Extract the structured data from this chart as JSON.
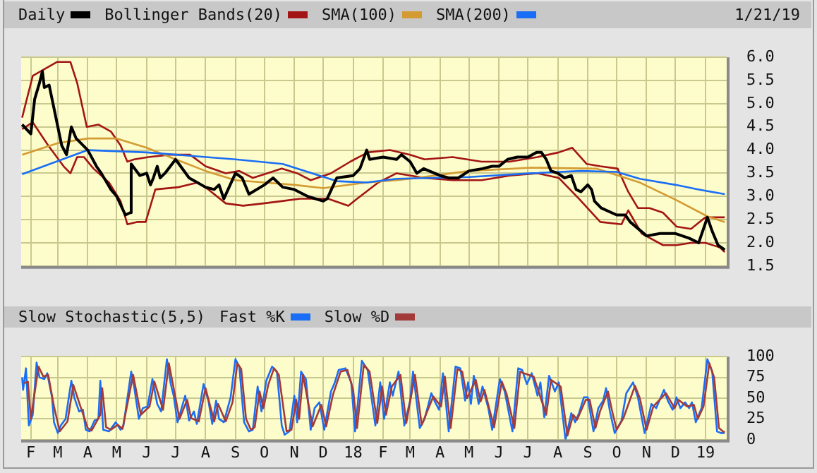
{
  "chart_data": [
    {
      "type": "line",
      "legend": "top",
      "tick_labels": "y",
      "grid": true,
      "annotations": [
        "1/21/19"
      ],
      "xlim": [
        "2017-01-22",
        "2019-01-23"
      ],
      "xticks": [
        {
          "value": "2017-02-01",
          "label": null
        },
        {
          "value": "2017-03-01",
          "label": null
        },
        {
          "value": "2017-04-01",
          "label": null
        },
        {
          "value": "2017-05-01",
          "label": null
        },
        {
          "value": "2017-06-01",
          "label": null
        },
        {
          "value": "2017-07-01",
          "label": null
        },
        {
          "value": "2017-08-01",
          "label": null
        },
        {
          "value": "2017-09-01",
          "label": null
        },
        {
          "value": "2017-10-01",
          "label": null
        },
        {
          "value": "2017-11-01",
          "label": null
        },
        {
          "value": "2017-12-01",
          "label": null
        },
        {
          "value": "2018-01-01",
          "label": null
        },
        {
          "value": "2018-02-01",
          "label": null
        },
        {
          "value": "2018-03-01",
          "label": null
        },
        {
          "value": "2018-04-01",
          "label": null
        },
        {
          "value": "2018-05-01",
          "label": null
        },
        {
          "value": "2018-06-01",
          "label": null
        },
        {
          "value": "2018-07-01",
          "label": null
        },
        {
          "value": "2018-08-01",
          "label": null
        },
        {
          "value": "2018-09-01",
          "label": null
        },
        {
          "value": "2018-10-01",
          "label": null
        },
        {
          "value": "2018-11-01",
          "label": null
        },
        {
          "value": "2018-12-01",
          "label": null
        },
        {
          "value": "2019-01-01",
          "label": null
        }
      ],
      "ylim": [
        1.5,
        6.0
      ],
      "yticks": [
        {
          "value": 1.5,
          "label": "1.5"
        },
        {
          "value": 2,
          "label": "2.0"
        },
        {
          "value": 2.5,
          "label": "2.5"
        },
        {
          "value": 3,
          "label": "3.0"
        },
        {
          "value": 3.5,
          "label": "3.5"
        },
        {
          "value": 4,
          "label": "4.0"
        },
        {
          "value": 4.5,
          "label": "4.5"
        },
        {
          "value": 5,
          "label": "5.0"
        },
        {
          "value": 5.5,
          "label": "5.5"
        },
        {
          "value": 6,
          "label": "6.0"
        }
      ],
      "series": [
        {
          "name": "Bollinger Bands(20)",
          "color": "#a31515",
          "x": [
            "2017-01-23",
            "2017-02-03",
            "2017-02-28",
            "2017-03-14",
            "2017-03-21",
            "2017-03-31",
            "2017-04-12",
            "2017-04-25",
            "2017-05-05",
            "2017-05-12",
            "2017-05-19",
            "2017-06-03",
            "2017-06-25",
            "2017-07-16",
            "2017-08-01",
            "2017-08-22",
            "2017-09-05",
            "2017-09-19",
            "2017-10-04",
            "2017-10-19",
            "2017-11-04",
            "2017-11-18",
            "2017-12-09",
            "2017-12-29",
            "2018-01-16",
            "2018-02-08",
            "2018-03-01",
            "2018-03-16",
            "2018-04-14",
            "2018-05-14",
            "2018-06-12",
            "2018-07-11",
            "2018-08-02",
            "2018-08-16",
            "2018-08-31",
            "2018-09-14",
            "2018-10-02",
            "2018-10-13",
            "2018-10-23",
            "2018-11-04",
            "2018-11-18",
            "2018-12-02",
            "2018-12-17",
            "2019-01-01",
            "2019-01-16",
            "2019-01-21"
          ],
          "values": [
            4.7,
            5.6,
            5.9,
            5.9,
            5.45,
            4.5,
            4.55,
            4.4,
            4.1,
            3.75,
            3.8,
            3.85,
            3.9,
            3.9,
            3.65,
            3.5,
            3.55,
            3.4,
            3.5,
            3.6,
            3.5,
            3.35,
            3.5,
            3.75,
            3.95,
            4.0,
            3.9,
            3.8,
            3.85,
            3.75,
            3.75,
            3.85,
            3.95,
            4.05,
            3.7,
            3.65,
            3.6,
            3.1,
            2.75,
            2.75,
            2.65,
            2.35,
            2.3,
            2.55,
            2.55,
            2.55
          ]
        },
        {
          "color": "#a31515",
          "x": [
            "2017-01-23",
            "2017-02-03",
            "2017-02-19",
            "2017-03-07",
            "2017-03-14",
            "2017-03-21",
            "2017-03-28",
            "2017-04-07",
            "2017-04-23",
            "2017-05-05",
            "2017-05-12",
            "2017-05-22",
            "2017-05-31",
            "2017-06-10",
            "2017-07-04",
            "2017-07-24",
            "2017-08-04",
            "2017-08-22",
            "2017-09-09",
            "2017-09-30",
            "2017-10-19",
            "2017-11-07",
            "2017-12-06",
            "2017-12-27",
            "2018-01-05",
            "2018-01-27",
            "2018-02-15",
            "2018-03-16",
            "2018-04-14",
            "2018-05-14",
            "2018-06-12",
            "2018-07-11",
            "2018-08-02",
            "2018-08-23",
            "2018-09-14",
            "2018-10-06",
            "2018-10-13",
            "2018-10-27",
            "2018-11-18",
            "2018-12-02",
            "2018-12-17",
            "2019-01-01",
            "2019-01-16",
            "2019-01-21"
          ],
          "values": [
            4.45,
            4.6,
            4.1,
            3.65,
            3.5,
            3.85,
            3.85,
            3.6,
            3.3,
            2.9,
            2.4,
            2.45,
            2.45,
            3.15,
            3.2,
            3.3,
            3.15,
            2.85,
            2.8,
            2.85,
            2.9,
            2.95,
            2.95,
            2.8,
            2.95,
            3.3,
            3.5,
            3.4,
            3.35,
            3.35,
            3.45,
            3.5,
            3.4,
            2.95,
            2.45,
            2.4,
            2.7,
            2.2,
            1.95,
            1.95,
            2.0,
            2.0,
            1.9,
            1.8
          ]
        },
        {
          "name": "SMA(100)",
          "color": "#d39b32",
          "x": [
            "2017-01-23",
            "2017-03-01",
            "2017-04-01",
            "2017-05-01",
            "2017-06-01",
            "2017-07-01",
            "2017-08-01",
            "2017-09-01",
            "2017-10-01",
            "2017-11-01",
            "2017-12-01",
            "2018-01-15",
            "2018-02-15",
            "2018-03-01",
            "2018-05-01",
            "2018-07-05",
            "2018-09-10",
            "2018-10-25",
            "2018-12-01",
            "2019-01-03",
            "2019-01-21"
          ],
          "values": [
            3.9,
            4.15,
            4.25,
            4.25,
            4.05,
            3.8,
            3.55,
            3.35,
            3.3,
            3.25,
            3.18,
            3.3,
            3.35,
            3.38,
            3.55,
            3.62,
            3.6,
            3.3,
            2.93,
            2.57,
            2.45
          ]
        },
        {
          "name": "SMA(200)",
          "color": "#1a6ef5",
          "x": [
            "2017-01-23",
            "2017-04-01",
            "2017-06-01",
            "2017-09-01",
            "2017-10-20",
            "2017-12-15",
            "2018-01-15",
            "2018-02-15",
            "2018-05-01",
            "2018-07-05",
            "2018-08-25",
            "2018-10-01",
            "2018-10-25",
            "2018-12-01",
            "2018-12-25",
            "2019-01-21"
          ],
          "values": [
            3.48,
            4.0,
            3.95,
            3.8,
            3.7,
            3.33,
            3.3,
            3.38,
            3.42,
            3.5,
            3.55,
            3.53,
            3.38,
            3.25,
            3.15,
            3.05
          ]
        },
        {
          "name": "Daily",
          "color": "#000000",
          "x": [
            "2017-01-23",
            "2017-02-01",
            "2017-02-05",
            "2017-02-10",
            "2017-02-13",
            "2017-02-15",
            "2017-02-20",
            "2017-03-01",
            "2017-03-05",
            "2017-03-10",
            "2017-03-15",
            "2017-03-20",
            "2017-04-01",
            "2017-04-10",
            "2017-04-15",
            "2017-04-25",
            "2017-05-01",
            "2017-05-10",
            "2017-05-15",
            "2017-05-16",
            "2017-05-25",
            "2017-06-01",
            "2017-06-05",
            "2017-06-08",
            "2017-06-12",
            "2017-06-15",
            "2017-06-20",
            "2017-07-01",
            "2017-07-15",
            "2017-08-01",
            "2017-08-10",
            "2017-08-15",
            "2017-08-20",
            "2017-09-01",
            "2017-09-08",
            "2017-09-15",
            "2017-10-01",
            "2017-10-10",
            "2017-10-20",
            "2017-11-01",
            "2017-11-15",
            "2017-12-01",
            "2017-12-05",
            "2017-12-15",
            "2018-01-01",
            "2018-01-08",
            "2018-01-15",
            "2018-01-18",
            "2018-02-01",
            "2018-02-15",
            "2018-02-20",
            "2018-03-01",
            "2018-03-08",
            "2018-03-15",
            "2018-04-01",
            "2018-04-10",
            "2018-04-20",
            "2018-05-01",
            "2018-05-15",
            "2018-05-25",
            "2018-06-01",
            "2018-06-10",
            "2018-06-20",
            "2018-07-01",
            "2018-07-10",
            "2018-07-15",
            "2018-07-20",
            "2018-07-25",
            "2018-08-01",
            "2018-08-08",
            "2018-08-15",
            "2018-08-20",
            "2018-08-25",
            "2018-09-01",
            "2018-09-05",
            "2018-09-08",
            "2018-09-15",
            "2018-10-01",
            "2018-10-10",
            "2018-10-15",
            "2018-11-01",
            "2018-11-15",
            "2018-12-01",
            "2018-12-15",
            "2018-12-25",
            "2019-01-03",
            "2019-01-08",
            "2019-01-14",
            "2019-01-21"
          ],
          "values": [
            4.55,
            4.35,
            5.1,
            5.45,
            5.7,
            5.35,
            5.4,
            4.5,
            4.1,
            3.9,
            4.5,
            4.25,
            4.0,
            3.65,
            3.5,
            3.15,
            3.0,
            2.6,
            2.65,
            3.7,
            3.45,
            3.5,
            3.25,
            3.4,
            3.65,
            3.4,
            3.5,
            3.8,
            3.4,
            3.2,
            3.15,
            3.25,
            2.95,
            3.5,
            3.4,
            3.05,
            3.25,
            3.4,
            3.2,
            3.15,
            3.0,
            2.9,
            2.95,
            3.4,
            3.45,
            3.6,
            4.0,
            3.8,
            3.85,
            3.8,
            3.9,
            3.75,
            3.5,
            3.6,
            3.45,
            3.4,
            3.4,
            3.55,
            3.6,
            3.65,
            3.65,
            3.8,
            3.85,
            3.85,
            3.95,
            3.95,
            3.8,
            3.55,
            3.5,
            3.4,
            3.45,
            3.15,
            3.1,
            3.25,
            3.15,
            2.9,
            2.75,
            2.6,
            2.6,
            2.45,
            2.15,
            2.2,
            2.2,
            2.1,
            2.0,
            2.55,
            2.25,
            1.95,
            1.85
          ]
        }
      ]
    },
    {
      "type": "line",
      "legend": "top",
      "legend_title": "Slow Stochastic(5,5)",
      "grid": true,
      "xlim": [
        "2017-01-22",
        "2019-01-23"
      ],
      "xticks": [
        {
          "value": "2017-02-01",
          "label": "F"
        },
        {
          "value": "2017-03-01",
          "label": "M"
        },
        {
          "value": "2017-04-01",
          "label": "A"
        },
        {
          "value": "2017-05-01",
          "label": "M"
        },
        {
          "value": "2017-06-01",
          "label": "J"
        },
        {
          "value": "2017-07-01",
          "label": "J"
        },
        {
          "value": "2017-08-01",
          "label": "A"
        },
        {
          "value": "2017-09-01",
          "label": "S"
        },
        {
          "value": "2017-10-01",
          "label": "O"
        },
        {
          "value": "2017-11-01",
          "label": "N"
        },
        {
          "value": "2017-12-01",
          "label": "D"
        },
        {
          "value": "2018-01-01",
          "label": "18"
        },
        {
          "value": "2018-02-01",
          "label": "F"
        },
        {
          "value": "2018-03-01",
          "label": "M"
        },
        {
          "value": "2018-04-01",
          "label": "A"
        },
        {
          "value": "2018-05-01",
          "label": "M"
        },
        {
          "value": "2018-06-01",
          "label": "J"
        },
        {
          "value": "2018-07-01",
          "label": "J"
        },
        {
          "value": "2018-08-01",
          "label": "A"
        },
        {
          "value": "2018-09-01",
          "label": "S"
        },
        {
          "value": "2018-10-01",
          "label": "O"
        },
        {
          "value": "2018-11-01",
          "label": "N"
        },
        {
          "value": "2018-12-01",
          "label": "D"
        },
        {
          "value": "2019-01-01",
          "label": "19"
        }
      ],
      "ylim": [
        0,
        100
      ],
      "yticks": [
        0,
        25,
        50,
        75,
        100
      ],
      "series": [
        {
          "name": "Fast %K",
          "color": "#1a6ef5",
          "x": [
            "2017-01-23",
            "2017-01-24",
            "2017-01-27",
            "2017-01-30",
            "2017-02-03",
            "2017-02-07",
            "2017-02-10",
            "2017-02-15",
            "2017-02-18",
            "2017-02-23",
            "2017-02-25",
            "2017-03-01",
            "2017-03-04",
            "2017-03-09",
            "2017-03-15",
            "2017-03-18",
            "2017-03-23",
            "2017-03-27",
            "2017-03-30",
            "2017-04-03",
            "2017-04-08",
            "2017-04-12",
            "2017-04-14",
            "2017-04-17",
            "2017-04-23",
            "2017-04-30",
            "2017-05-05",
            "2017-05-08",
            "2017-05-16",
            "2017-05-19",
            "2017-05-24",
            "2017-05-28",
            "2017-06-02",
            "2017-06-07",
            "2017-06-12",
            "2017-06-16",
            "2017-06-22",
            "2017-06-26",
            "2017-06-29",
            "2017-07-03",
            "2017-07-11",
            "2017-07-15",
            "2017-07-20",
            "2017-07-23",
            "2017-07-30",
            "2017-08-04",
            "2017-08-08",
            "2017-08-12",
            "2017-08-15",
            "2017-08-20",
            "2017-08-27",
            "2017-09-01",
            "2017-09-05",
            "2017-09-10",
            "2017-09-15",
            "2017-09-19",
            "2017-09-24",
            "2017-09-28",
            "2017-10-03",
            "2017-10-09",
            "2017-10-14",
            "2017-10-19",
            "2017-10-22",
            "2017-10-27",
            "2017-11-01",
            "2017-11-04",
            "2017-11-08",
            "2017-11-13",
            "2017-11-18",
            "2017-11-22",
            "2017-11-27",
            "2017-12-02",
            "2017-12-09",
            "2017-12-13",
            "2017-12-17",
            "2017-12-24",
            "2017-12-30",
            "2018-01-03",
            "2018-01-10",
            "2018-01-16",
            "2018-01-24",
            "2018-01-29",
            "2018-02-02",
            "2018-02-08",
            "2018-02-11",
            "2018-02-17",
            "2018-02-23",
            "2018-03-01",
            "2018-03-04",
            "2018-03-11",
            "2018-03-16",
            "2018-03-23",
            "2018-03-27",
            "2018-03-31",
            "2018-04-04",
            "2018-04-10",
            "2018-04-17",
            "2018-04-22",
            "2018-04-27",
            "2018-04-30",
            "2018-05-03",
            "2018-05-06",
            "2018-05-11",
            "2018-05-15",
            "2018-05-21",
            "2018-05-25",
            "2018-06-02",
            "2018-06-07",
            "2018-06-15",
            "2018-06-21",
            "2018-06-25",
            "2018-06-30",
            "2018-07-05",
            "2018-07-11",
            "2018-07-14",
            "2018-07-18",
            "2018-07-23",
            "2018-07-29",
            "2018-08-02",
            "2018-08-09",
            "2018-08-15",
            "2018-08-19",
            "2018-08-23",
            "2018-08-28",
            "2018-09-01",
            "2018-09-07",
            "2018-09-12",
            "2018-09-17",
            "2018-09-20",
            "2018-09-24",
            "2018-09-29",
            "2018-10-06",
            "2018-10-11",
            "2018-10-18",
            "2018-10-23",
            "2018-10-30",
            "2018-11-06",
            "2018-11-11",
            "2018-11-19",
            "2018-11-23",
            "2018-11-28",
            "2018-12-02",
            "2018-12-06",
            "2018-12-11",
            "2018-12-15",
            "2018-12-18",
            "2018-12-22",
            "2018-12-28",
            "2019-01-03",
            "2019-01-08",
            "2019-01-13",
            "2019-01-17",
            "2019-01-21"
          ],
          "values": [
            75,
            60,
            86,
            17,
            30,
            93,
            75,
            73,
            80,
            51,
            21,
            8,
            17,
            25,
            71,
            51,
            34,
            36,
            12,
            10,
            23,
            25,
            71,
            12,
            10,
            21,
            12,
            17,
            82,
            64,
            25,
            38,
            40,
            73,
            43,
            34,
            97,
            67,
            53,
            21,
            53,
            23,
            34,
            19,
            67,
            47,
            19,
            47,
            25,
            21,
            51,
            97,
            88,
            21,
            10,
            12,
            64,
            34,
            71,
            88,
            82,
            17,
            6,
            10,
            53,
            21,
            82,
            73,
            12,
            38,
            45,
            12,
            58,
            69,
            84,
            86,
            69,
            10,
            95,
            84,
            17,
            69,
            25,
            69,
            53,
            82,
            17,
            47,
            82,
            14,
            25,
            56,
            45,
            36,
            80,
            10,
            88,
            86,
            47,
            69,
            43,
            77,
            43,
            64,
            38,
            12,
            73,
            58,
            10,
            86,
            84,
            67,
            80,
            53,
            69,
            27,
            77,
            58,
            69,
            0,
            32,
            21,
            32,
            51,
            51,
            10,
            38,
            47,
            62,
            34,
            8,
            23,
            56,
            69,
            51,
            8,
            43,
            38,
            60,
            47,
            36,
            51,
            38,
            45,
            38,
            45,
            21,
            38,
            97,
            82,
            10,
            8,
            8
          ]
        },
        {
          "name": "Slow %D",
          "color": "#a33a3a",
          "x": [
            "2017-01-25",
            "2017-01-29",
            "2017-02-01",
            "2017-02-09",
            "2017-02-14",
            "2017-02-19",
            "2017-02-25",
            "2017-03-03",
            "2017-03-11",
            "2017-03-17",
            "2017-03-25",
            "2017-04-01",
            "2017-04-05",
            "2017-04-14",
            "2017-04-16",
            "2017-04-20",
            "2017-04-25",
            "2017-05-02",
            "2017-05-07",
            "2017-05-18",
            "2017-05-26",
            "2017-06-04",
            "2017-06-09",
            "2017-06-18",
            "2017-06-24",
            "2017-07-01",
            "2017-07-05",
            "2017-07-13",
            "2017-07-17",
            "2017-07-25",
            "2017-08-01",
            "2017-08-10",
            "2017-08-14",
            "2017-08-22",
            "2017-08-29",
            "2017-09-03",
            "2017-09-07",
            "2017-09-12",
            "2017-09-17",
            "2017-09-21",
            "2017-09-26",
            "2017-09-30",
            "2017-10-05",
            "2017-10-11",
            "2017-10-16",
            "2017-10-24",
            "2017-10-29",
            "2017-11-03",
            "2017-11-06",
            "2017-11-10",
            "2017-11-20",
            "2017-11-29",
            "2017-12-04",
            "2017-12-11",
            "2017-12-19",
            "2017-12-26",
            "2018-01-01",
            "2018-01-05",
            "2018-01-12",
            "2018-01-18",
            "2018-01-26",
            "2018-01-31",
            "2018-02-04",
            "2018-02-10",
            "2018-02-19",
            "2018-02-25",
            "2018-03-06",
            "2018-03-13",
            "2018-03-25",
            "2018-04-02",
            "2018-04-06",
            "2018-04-12",
            "2018-04-19",
            "2018-04-24",
            "2018-04-29",
            "2018-05-08",
            "2018-05-13",
            "2018-05-17",
            "2018-05-27",
            "2018-06-04",
            "2018-06-09",
            "2018-06-17",
            "2018-06-23",
            "2018-06-27",
            "2018-07-07",
            "2018-07-13",
            "2018-07-20",
            "2018-07-25",
            "2018-08-04",
            "2018-08-11",
            "2018-08-17",
            "2018-08-21",
            "2018-08-30",
            "2018-09-03",
            "2018-09-09",
            "2018-09-14",
            "2018-09-22",
            "2018-09-26",
            "2018-10-01",
            "2018-10-08",
            "2018-10-20",
            "2018-10-25",
            "2018-11-01",
            "2018-11-08",
            "2018-11-21",
            "2018-11-30",
            "2018-12-04",
            "2018-12-13",
            "2018-12-20",
            "2018-12-24",
            "2018-12-30",
            "2019-01-05",
            "2019-01-10",
            "2019-01-15",
            "2019-01-19",
            "2019-01-21"
          ],
          "values": [
            68,
            70,
            25,
            88,
            76,
            78,
            40,
            10,
            22,
            66,
            38,
            14,
            11,
            30,
            62,
            15,
            12,
            18,
            13,
            78,
            30,
            40,
            70,
            36,
            92,
            50,
            25,
            48,
            26,
            22,
            62,
            22,
            43,
            22,
            45,
            92,
            85,
            25,
            12,
            15,
            58,
            38,
            66,
            86,
            78,
            10,
            12,
            48,
            25,
            78,
            16,
            42,
            16,
            54,
            82,
            84,
            60,
            14,
            90,
            82,
            20,
            64,
            30,
            64,
            78,
            20,
            78,
            18,
            52,
            40,
            76,
            14,
            85,
            82,
            50,
            72,
            46,
            60,
            15,
            70,
            55,
            14,
            82,
            80,
            76,
            55,
            30,
            72,
            64,
            5,
            30,
            24,
            48,
            48,
            14,
            35,
            58,
            36,
            12,
            26,
            65,
            50,
            12,
            40,
            56,
            38,
            48,
            40,
            42,
            25,
            40,
            92,
            75,
            14,
            10,
            9
          ]
        }
      ]
    }
  ]
}
